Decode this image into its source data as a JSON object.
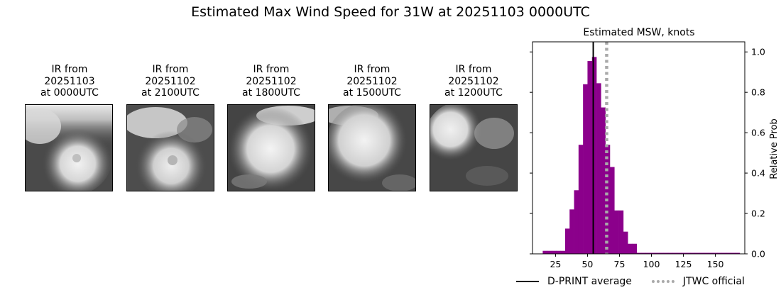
{
  "title": "Estimated Max Wind Speed for 31W at 20251103 0000UTC",
  "panels": [
    {
      "line1": "IR from",
      "line2": "20251103",
      "line3": "at 0000UTC"
    },
    {
      "line1": "IR from",
      "line2": "20251102",
      "line3": "at 2100UTC"
    },
    {
      "line1": "IR from",
      "line2": "20251102",
      "line3": "at 1800UTC"
    },
    {
      "line1": "IR from",
      "line2": "20251102",
      "line3": "at 1500UTC"
    },
    {
      "line1": "IR from",
      "line2": "20251102",
      "line3": "at 1200UTC"
    }
  ],
  "chart_data": {
    "type": "bar",
    "title": "Estimated MSW, knots",
    "xlabel": "",
    "ylabel": "Relative Prob",
    "xlim": [
      7,
      173
    ],
    "ylim": [
      0,
      1.05
    ],
    "xticks": [
      25,
      50,
      75,
      100,
      125,
      150
    ],
    "yticks": [
      0.0,
      0.2,
      0.4,
      0.6,
      0.8,
      1.0
    ],
    "ytick_labels": [
      "0.0",
      "0.2",
      "0.4",
      "0.6",
      "0.8",
      "1.0"
    ],
    "grid": false,
    "bar_color": "#8b008b",
    "bin_width": 3.5,
    "bin_starts": [
      15,
      18.5,
      22,
      25.5,
      29,
      32.5,
      36,
      39.5,
      43,
      46.5,
      50,
      53.5,
      57,
      60.5,
      64,
      67.5,
      71,
      74.5,
      78,
      81.5,
      85,
      88.5,
      92,
      95.5,
      99,
      102.5,
      106,
      109.5,
      113,
      116.5,
      120,
      123.5,
      127,
      130.5,
      134,
      137.5,
      141,
      144.5,
      148,
      151.5,
      155,
      158.5,
      162,
      165.5
    ],
    "values": [
      0.015,
      0.015,
      0.015,
      0.015,
      0.015,
      0.125,
      0.22,
      0.315,
      0.54,
      0.84,
      0.955,
      0.975,
      0.845,
      0.725,
      0.54,
      0.43,
      0.215,
      0.215,
      0.11,
      0.05,
      0.05,
      0.005,
      0.005,
      0.005,
      0.005,
      0.005,
      0.005,
      0.005,
      0.005,
      0.005,
      0.005,
      0.005,
      0.005,
      0.005,
      0.005,
      0.005,
      0.005,
      0.005,
      0.005,
      0.005,
      0.005,
      0.005,
      0.005,
      0.005
    ],
    "lines": [
      {
        "name": "D-PRINT average",
        "x": 54.5,
        "color": "#000000",
        "style": "solid"
      },
      {
        "name": "JTWC official",
        "x": 65,
        "color": "#a9a9a9",
        "style": "dotted"
      }
    ],
    "legend_position": "bottom-right"
  }
}
